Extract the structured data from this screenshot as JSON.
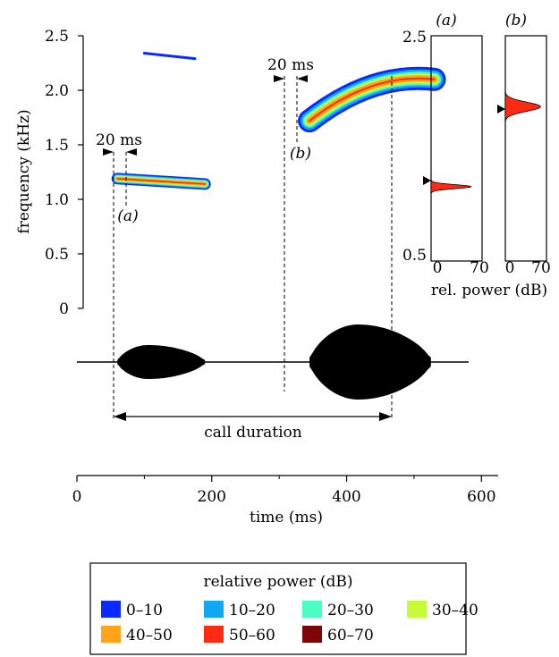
{
  "chart_data": [
    {
      "type": "spectrogram",
      "ylabel": "frequency (kHz)",
      "y_ticks": [
        "0",
        "0.5",
        "1.0",
        "1.5",
        "2.0",
        "2.5"
      ],
      "ylim": [
        0,
        2.5
      ],
      "xlim": [
        0,
        650
      ],
      "segments": [
        {
          "name": "(a)",
          "start_ms": 60,
          "end_ms": 190,
          "freq_start_khz": 1.19,
          "freq_end_khz": 1.14
        },
        {
          "name": "(b)",
          "start_ms": 345,
          "end_ms": 530,
          "freq_start_khz": 1.72,
          "freq_end_khz": 2.1
        }
      ],
      "faint_trace": {
        "start_ms": 100,
        "end_ms": 175,
        "freq_start_khz": 2.34,
        "freq_end_khz": 2.29
      },
      "annotations": {
        "gap_a": "20 ms",
        "gap_b": "20 ms",
        "label_a": "(a)",
        "label_b": "(b)",
        "call_duration": "call duration"
      },
      "call_duration_ms": [
        60,
        525
      ]
    },
    {
      "type": "area",
      "ylabel": "",
      "xlabel": "rel. power (dB)",
      "xlim": [
        0,
        70
      ],
      "ylim": [
        0.5,
        2.5
      ],
      "y_ticks": [
        "0.5",
        "2.5"
      ],
      "x_ticks": [
        "0",
        "70"
      ],
      "panels": [
        {
          "label": "(a)",
          "peak_freq_khz": 1.16,
          "peak_db": 55
        },
        {
          "label": "(b)",
          "peak_freq_khz": 1.87,
          "peak_db": 60
        }
      ]
    },
    {
      "type": "waveform",
      "xlabel": "time (ms)",
      "x_ticks": [
        "0",
        "200",
        "400",
        "600"
      ],
      "xlim": [
        0,
        650
      ]
    }
  ],
  "legend": {
    "title": "relative power (dB)",
    "items": [
      {
        "label": "0–10",
        "color": "#0a2bff"
      },
      {
        "label": "10–20",
        "color": "#10a8f2"
      },
      {
        "label": "20–30",
        "color": "#4dfcc2"
      },
      {
        "label": "30–40",
        "color": "#c6fb3a"
      },
      {
        "label": "40–50",
        "color": "#ffa31a"
      },
      {
        "label": "50–60",
        "color": "#ff2a12"
      },
      {
        "label": "60–70",
        "color": "#7d0707"
      }
    ]
  }
}
